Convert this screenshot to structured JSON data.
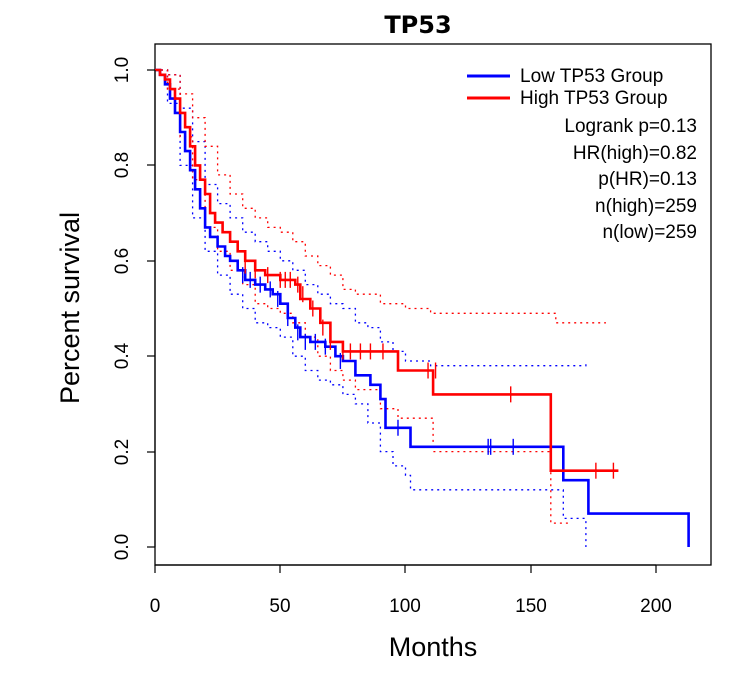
{
  "chart_data": {
    "type": "line",
    "title": "TP53",
    "xlabel": "Months",
    "ylabel": "Percent survival",
    "xlim": [
      0,
      220
    ],
    "ylim": [
      0,
      1.0
    ],
    "x_ticks": [
      "0",
      "50",
      "100",
      "150",
      "200"
    ],
    "y_ticks": [
      "0.0",
      "0.2",
      "0.4",
      "0.6",
      "0.8",
      "1.0"
    ],
    "legend_position": "top-right",
    "colors": {
      "low": "#0000ff",
      "high": "#ff0000",
      "axis": "#000000"
    },
    "series": [
      {
        "name": "Low TP53 Group",
        "color": "#0000ff",
        "values": [
          [
            0,
            1.0
          ],
          [
            2,
            0.99
          ],
          [
            4,
            0.97
          ],
          [
            6,
            0.94
          ],
          [
            8,
            0.91
          ],
          [
            10,
            0.87
          ],
          [
            12,
            0.83
          ],
          [
            14,
            0.79
          ],
          [
            16,
            0.75
          ],
          [
            18,
            0.71
          ],
          [
            20,
            0.67
          ],
          [
            22,
            0.65
          ],
          [
            25,
            0.63
          ],
          [
            28,
            0.61
          ],
          [
            30,
            0.6
          ],
          [
            33,
            0.58
          ],
          [
            36,
            0.56
          ],
          [
            40,
            0.55
          ],
          [
            44,
            0.54
          ],
          [
            47,
            0.53
          ],
          [
            50,
            0.51
          ],
          [
            53,
            0.48
          ],
          [
            56,
            0.46
          ],
          [
            58,
            0.44
          ],
          [
            62,
            0.43
          ],
          [
            68,
            0.42
          ],
          [
            72,
            0.4
          ],
          [
            75,
            0.39
          ],
          [
            80,
            0.36
          ],
          [
            86,
            0.34
          ],
          [
            90,
            0.31
          ],
          [
            92,
            0.25
          ],
          [
            96,
            0.25
          ],
          [
            102,
            0.21
          ],
          [
            160,
            0.21
          ],
          [
            163,
            0.14
          ],
          [
            172,
            0.14
          ],
          [
            173,
            0.07
          ],
          [
            213,
            0.07
          ],
          [
            213,
            0.0
          ]
        ],
        "censor_marks": [
          [
            35,
            0.57
          ],
          [
            38,
            0.56
          ],
          [
            42,
            0.55
          ],
          [
            46,
            0.54
          ],
          [
            49,
            0.52
          ],
          [
            53,
            0.48
          ],
          [
            57,
            0.45
          ],
          [
            60,
            0.43
          ],
          [
            64,
            0.43
          ],
          [
            68,
            0.42
          ],
          [
            74,
            0.39
          ],
          [
            97,
            0.25
          ],
          [
            133,
            0.21
          ],
          [
            134,
            0.21
          ],
          [
            143,
            0.21
          ]
        ],
        "ci_upper": [
          [
            0,
            1.0
          ],
          [
            5,
            0.99
          ],
          [
            10,
            0.92
          ],
          [
            15,
            0.85
          ],
          [
            20,
            0.76
          ],
          [
            25,
            0.72
          ],
          [
            30,
            0.69
          ],
          [
            35,
            0.66
          ],
          [
            40,
            0.64
          ],
          [
            45,
            0.62
          ],
          [
            50,
            0.6
          ],
          [
            55,
            0.58
          ],
          [
            60,
            0.55
          ],
          [
            65,
            0.53
          ],
          [
            70,
            0.51
          ],
          [
            75,
            0.5
          ],
          [
            80,
            0.47
          ],
          [
            85,
            0.46
          ],
          [
            90,
            0.43
          ],
          [
            95,
            0.41
          ],
          [
            100,
            0.39
          ],
          [
            110,
            0.38
          ],
          [
            130,
            0.38
          ],
          [
            150,
            0.38
          ],
          [
            165,
            0.38
          ],
          [
            172,
            0.39
          ]
        ],
        "ci_lower": [
          [
            0,
            1.0
          ],
          [
            5,
            0.93
          ],
          [
            10,
            0.8
          ],
          [
            15,
            0.69
          ],
          [
            20,
            0.62
          ],
          [
            25,
            0.57
          ],
          [
            30,
            0.53
          ],
          [
            35,
            0.5
          ],
          [
            40,
            0.47
          ],
          [
            45,
            0.46
          ],
          [
            50,
            0.44
          ],
          [
            55,
            0.4
          ],
          [
            60,
            0.37
          ],
          [
            65,
            0.35
          ],
          [
            70,
            0.34
          ],
          [
            75,
            0.32
          ],
          [
            80,
            0.3
          ],
          [
            85,
            0.26
          ],
          [
            90,
            0.2
          ],
          [
            95,
            0.17
          ],
          [
            100,
            0.15
          ],
          [
            102,
            0.12
          ],
          [
            110,
            0.12
          ],
          [
            140,
            0.12
          ],
          [
            160,
            0.12
          ],
          [
            163,
            0.06
          ],
          [
            172,
            0.0
          ]
        ]
      },
      {
        "name": "High TP53 Group",
        "color": "#ff0000",
        "values": [
          [
            0,
            1.0
          ],
          [
            2,
            0.99
          ],
          [
            4,
            0.98
          ],
          [
            6,
            0.96
          ],
          [
            8,
            0.94
          ],
          [
            10,
            0.91
          ],
          [
            12,
            0.88
          ],
          [
            14,
            0.84
          ],
          [
            16,
            0.8
          ],
          [
            18,
            0.77
          ],
          [
            20,
            0.74
          ],
          [
            22,
            0.7
          ],
          [
            24,
            0.68
          ],
          [
            27,
            0.66
          ],
          [
            30,
            0.64
          ],
          [
            33,
            0.62
          ],
          [
            36,
            0.6
          ],
          [
            40,
            0.58
          ],
          [
            44,
            0.57
          ],
          [
            50,
            0.56
          ],
          [
            56,
            0.55
          ],
          [
            58,
            0.52
          ],
          [
            62,
            0.5
          ],
          [
            66,
            0.47
          ],
          [
            70,
            0.43
          ],
          [
            75,
            0.41
          ],
          [
            97,
            0.41
          ],
          [
            97,
            0.37
          ],
          [
            111,
            0.37
          ],
          [
            111,
            0.32
          ],
          [
            157,
            0.32
          ],
          [
            158,
            0.16
          ],
          [
            185,
            0.16
          ]
        ],
        "censor_marks": [
          [
            36,
            0.59
          ],
          [
            40,
            0.58
          ],
          [
            45,
            0.57
          ],
          [
            50,
            0.56
          ],
          [
            52,
            0.56
          ],
          [
            54,
            0.56
          ],
          [
            57,
            0.55
          ],
          [
            59,
            0.53
          ],
          [
            63,
            0.5
          ],
          [
            67,
            0.46
          ],
          [
            70,
            0.43
          ],
          [
            75,
            0.41
          ],
          [
            78,
            0.41
          ],
          [
            82,
            0.41
          ],
          [
            86,
            0.41
          ],
          [
            91,
            0.41
          ],
          [
            109,
            0.37
          ],
          [
            112,
            0.37
          ],
          [
            142,
            0.32
          ],
          [
            176,
            0.16
          ],
          [
            183,
            0.16
          ]
        ],
        "ci_upper": [
          [
            0,
            1.0
          ],
          [
            5,
            0.99
          ],
          [
            10,
            0.95
          ],
          [
            15,
            0.9
          ],
          [
            20,
            0.84
          ],
          [
            25,
            0.78
          ],
          [
            30,
            0.74
          ],
          [
            35,
            0.71
          ],
          [
            40,
            0.69
          ],
          [
            45,
            0.67
          ],
          [
            50,
            0.66
          ],
          [
            55,
            0.64
          ],
          [
            60,
            0.61
          ],
          [
            65,
            0.59
          ],
          [
            70,
            0.57
          ],
          [
            75,
            0.54
          ],
          [
            80,
            0.53
          ],
          [
            90,
            0.51
          ],
          [
            100,
            0.5
          ],
          [
            110,
            0.49
          ],
          [
            130,
            0.49
          ],
          [
            150,
            0.49
          ],
          [
            160,
            0.47
          ],
          [
            180,
            0.47
          ]
        ],
        "ci_lower": [
          [
            0,
            1.0
          ],
          [
            5,
            0.96
          ],
          [
            10,
            0.86
          ],
          [
            15,
            0.77
          ],
          [
            20,
            0.67
          ],
          [
            25,
            0.62
          ],
          [
            30,
            0.58
          ],
          [
            35,
            0.55
          ],
          [
            40,
            0.51
          ],
          [
            45,
            0.5
          ],
          [
            50,
            0.49
          ],
          [
            55,
            0.47
          ],
          [
            60,
            0.44
          ],
          [
            65,
            0.4
          ],
          [
            70,
            0.37
          ],
          [
            75,
            0.35
          ],
          [
            80,
            0.33
          ],
          [
            90,
            0.29
          ],
          [
            97,
            0.27
          ],
          [
            111,
            0.2
          ],
          [
            120,
            0.2
          ],
          [
            150,
            0.2
          ],
          [
            157,
            0.2
          ],
          [
            158,
            0.05
          ],
          [
            165,
            0.05
          ]
        ]
      }
    ],
    "legend_entries": [
      "Low TP53 Group",
      "High TP53 Group"
    ],
    "stats": [
      "Logrank p=0.13",
      "HR(high)=0.82",
      "p(HR)=0.13",
      "n(high)=259",
      "n(low)=259"
    ]
  }
}
